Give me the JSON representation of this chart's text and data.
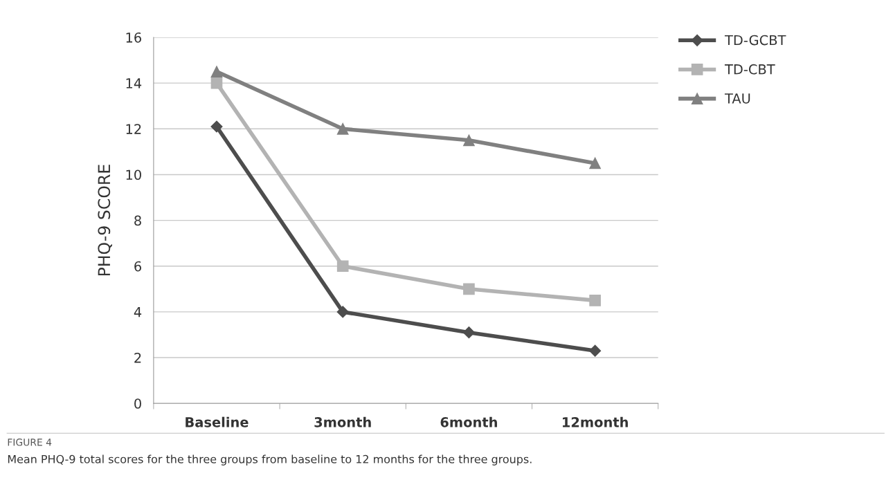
{
  "chart_data": {
    "type": "line",
    "ylabel": "PHQ-9 SCORE",
    "categories": [
      "Baseline",
      "3month",
      "6month",
      "12month"
    ],
    "series": [
      {
        "name": "TD-GCBT",
        "color": "#4d4d4d",
        "marker": "diamond",
        "values": [
          12.1,
          4.0,
          3.1,
          2.3
        ]
      },
      {
        "name": "TD-CBT",
        "color": "#b3b3b3",
        "marker": "square",
        "values": [
          14.0,
          6.0,
          5.0,
          4.5
        ]
      },
      {
        "name": "TAU",
        "color": "#808080",
        "marker": "triangle",
        "values": [
          14.5,
          12.0,
          11.5,
          10.5
        ]
      }
    ],
    "ylim": [
      0,
      16
    ],
    "yticks": [
      0,
      2,
      4,
      6,
      8,
      10,
      12,
      14,
      16
    ],
    "grid": "y",
    "legend": "top right",
    "line_style": "solid",
    "annotations": [
      "FIGURE 4",
      "Mean PHQ-9 total scores for the three groups from baseline to 12 months for the three groups."
    ]
  }
}
